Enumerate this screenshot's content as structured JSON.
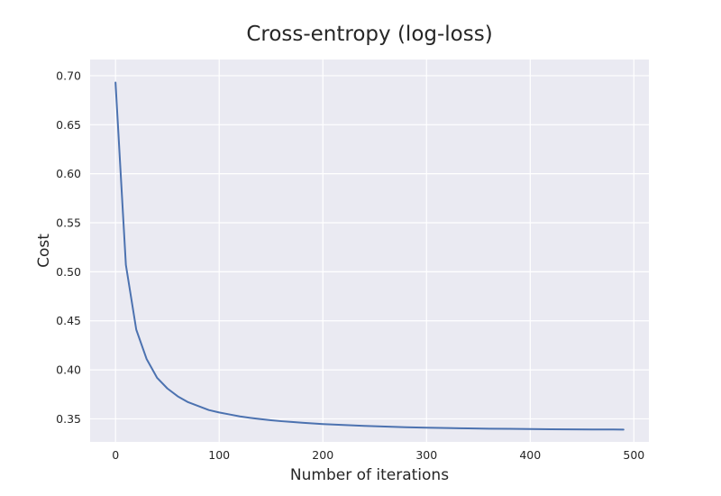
{
  "chart_data": {
    "type": "line",
    "title": "Cross-entropy (log-loss)",
    "xlabel": "Number of iterations",
    "ylabel": "Cost",
    "xlim": [
      -24.5,
      514.5
    ],
    "ylim": [
      0.3265,
      0.7165
    ],
    "xticks": [
      0,
      100,
      200,
      300,
      400,
      500
    ],
    "xtick_labels": [
      "0",
      "100",
      "200",
      "300",
      "400",
      "500"
    ],
    "yticks": [
      0.35,
      0.4,
      0.45,
      0.5,
      0.55,
      0.6,
      0.65,
      0.7
    ],
    "ytick_labels": [
      "0.35",
      "0.40",
      "0.45",
      "0.50",
      "0.55",
      "0.60",
      "0.65",
      "0.70"
    ],
    "grid": true,
    "series": [
      {
        "color": "#4c72b0",
        "x": [
          0,
          10,
          20,
          30,
          40,
          50,
          60,
          70,
          80,
          90,
          100,
          110,
          120,
          130,
          140,
          150,
          160,
          170,
          180,
          190,
          200,
          220,
          240,
          260,
          280,
          300,
          320,
          340,
          360,
          380,
          400,
          420,
          440,
          460,
          480,
          490
        ],
        "y": [
          0.693,
          0.507,
          0.441,
          0.411,
          0.392,
          0.381,
          0.373,
          0.367,
          0.363,
          0.359,
          0.3565,
          0.3545,
          0.3525,
          0.351,
          0.3497,
          0.3486,
          0.3476,
          0.3468,
          0.346,
          0.3453,
          0.3447,
          0.3437,
          0.3428,
          0.3421,
          0.3415,
          0.341,
          0.3406,
          0.3403,
          0.34,
          0.3398,
          0.3396,
          0.3394,
          0.3393,
          0.3392,
          0.3391,
          0.339
        ]
      }
    ]
  }
}
